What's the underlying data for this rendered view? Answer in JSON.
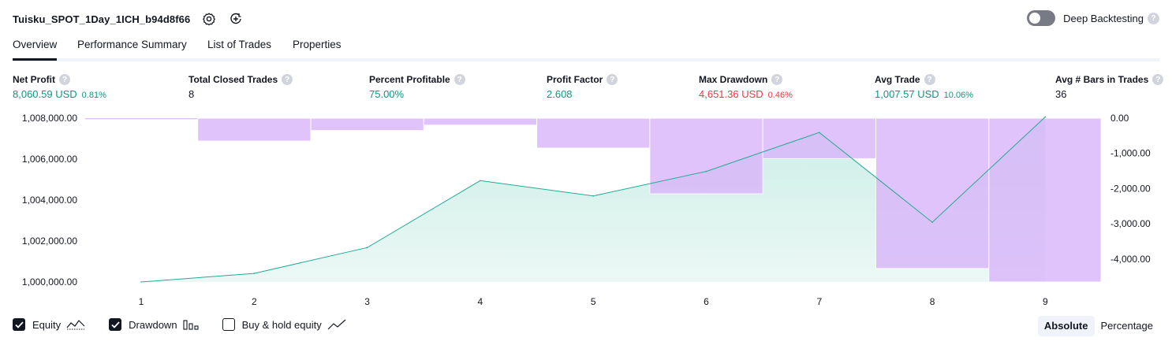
{
  "header": {
    "title": "Tuisku_SPOT_1Day_1ICH_b94d8f66",
    "deep_backtesting_label": "Deep Backtesting",
    "help_glyph": "?"
  },
  "tabs": [
    {
      "label": "Overview",
      "active": true
    },
    {
      "label": "Performance Summary",
      "active": false
    },
    {
      "label": "List of Trades",
      "active": false
    },
    {
      "label": "Properties",
      "active": false
    }
  ],
  "metrics": [
    {
      "label": "Net Profit",
      "value": "8,060.59 USD",
      "sub": "0.81%",
      "tone": "pos"
    },
    {
      "label": "Total Closed Trades",
      "value": "8",
      "sub": "",
      "tone": "neu"
    },
    {
      "label": "Percent Profitable",
      "value": "75.00%",
      "sub": "",
      "tone": "pos"
    },
    {
      "label": "Profit Factor",
      "value": "2.608",
      "sub": "",
      "tone": "pos"
    },
    {
      "label": "Max Drawdown",
      "value": "4,651.36 USD",
      "sub": "0.46%",
      "tone": "neg"
    },
    {
      "label": "Avg Trade",
      "value": "1,007.57 USD",
      "sub": "10.06%",
      "tone": "pos"
    },
    {
      "label": "Avg # Bars in Trades",
      "value": "36",
      "sub": "",
      "tone": "neu"
    }
  ],
  "legend": {
    "equity": "Equity",
    "drawdown": "Drawdown",
    "buy_hold": "Buy & hold equity"
  },
  "mode": {
    "absolute": "Absolute",
    "percentage": "Percentage"
  },
  "colors": {
    "equity_line": "#22ab94",
    "equity_fill": "#c8ece4",
    "drawdown_fill": "#d9b3fb",
    "drawdown_sep": "#ffffff"
  },
  "chart_data": {
    "type": "area",
    "x": [
      1,
      2,
      3,
      4,
      5,
      6,
      7,
      8,
      9
    ],
    "series": [
      {
        "values": [
          1000000,
          1000420,
          1001680,
          1004950,
          1004200,
          1005400,
          1007300,
          1002920,
          1008060
        ]
      },
      {
        "values": [
          0,
          -650,
          -350,
          -200,
          -850,
          -2150,
          -1150,
          -4270,
          -4651
        ]
      }
    ],
    "drawdown_initial": -30,
    "y_left_ticks": [
      "1,000,000.00",
      "1,002,000.00",
      "1,004,000.00",
      "1,006,000.00",
      "1,008,000.00"
    ],
    "y_left_range": [
      1000000,
      1008000
    ],
    "y_right_ticks": [
      "0.00",
      "-1,000.00",
      "-2,000.00",
      "-3,000.00",
      "-4,000.00"
    ],
    "y_right_range": [
      -4651.36,
      0
    ],
    "grid": false
  }
}
